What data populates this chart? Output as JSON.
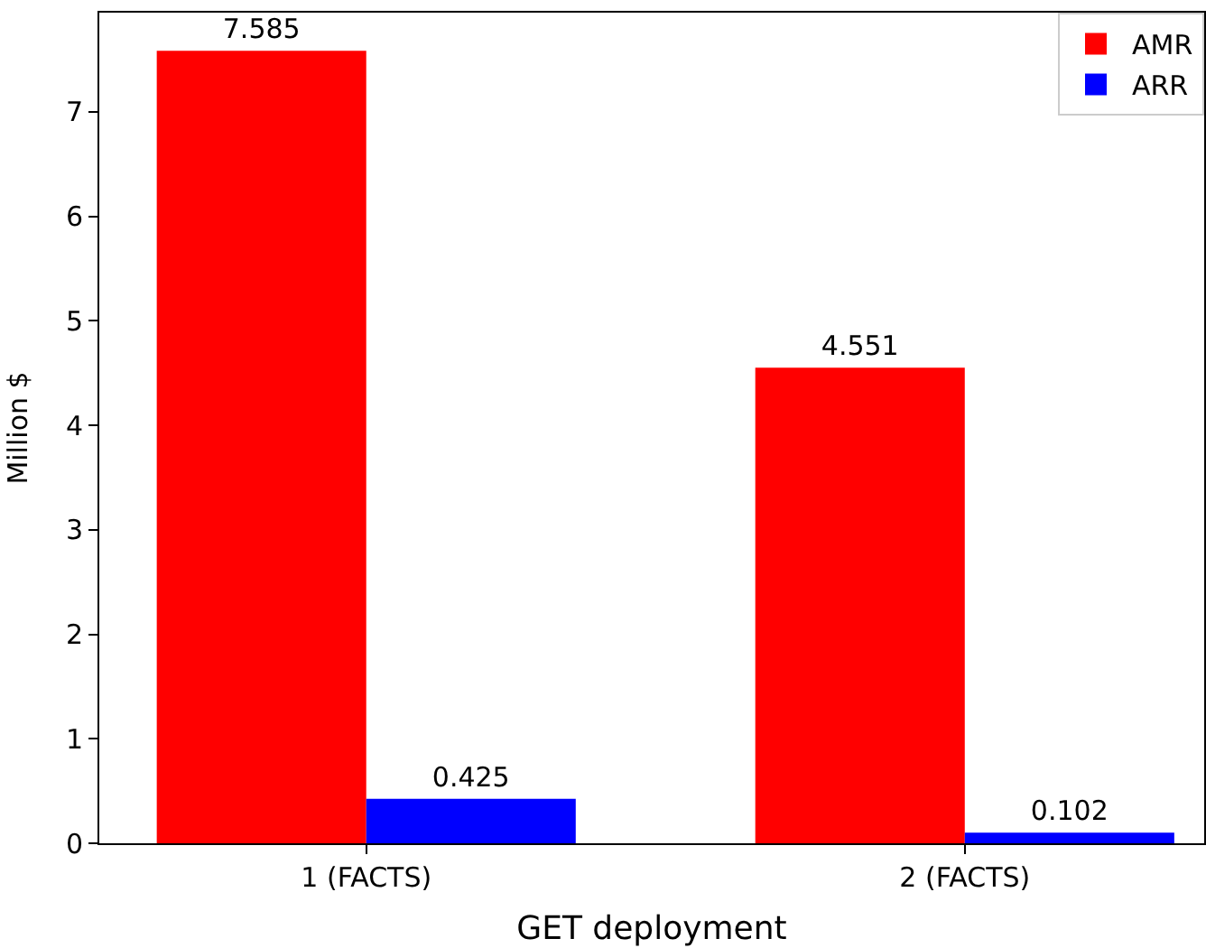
{
  "chart_data": {
    "type": "bar",
    "xlabel": "GET deployment",
    "ylabel": "Million $",
    "categories": [
      "1 (FACTS)",
      "2 (FACTS)"
    ],
    "series": [
      {
        "name": "AMR",
        "color": "#ff0000",
        "values": [
          7.585,
          4.551
        ]
      },
      {
        "name": "ARR",
        "color": "#0000ff",
        "values": [
          0.425,
          0.102
        ]
      }
    ],
    "ylim": [
      0,
      7.95
    ],
    "yticks": [
      0,
      1,
      2,
      3,
      4,
      5,
      6,
      7
    ],
    "grid": false,
    "legend": "top right",
    "data_labels": true
  }
}
